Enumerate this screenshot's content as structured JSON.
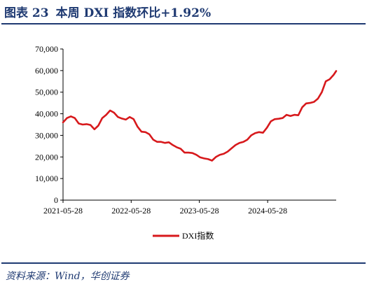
{
  "header": {
    "figure_label": "图表 23",
    "title": "本周 DXI 指数环比+1.92%"
  },
  "footer": {
    "source": "资料来源：Wind，华创证券"
  },
  "chart_data": {
    "type": "line",
    "title": "本周 DXI 指数环比+1.92%",
    "xlabel": "",
    "ylabel": "",
    "ylim": [
      0,
      70000
    ],
    "y_ticks": [
      0,
      10000,
      20000,
      30000,
      40000,
      50000,
      60000,
      70000
    ],
    "y_tick_labels": [
      "0",
      "10,000",
      "20,000",
      "30,000",
      "40,000",
      "50,000",
      "60,000",
      "70,000"
    ],
    "x_range": [
      "2021-05-28",
      "2025-05-30"
    ],
    "x_ticks": [
      "2021-05-28",
      "2022-05-28",
      "2023-05-28",
      "2024-05-28"
    ],
    "grid": false,
    "legend_position": "bottom-center",
    "line_color": "#d7191c",
    "series": [
      {
        "name": "DXI指数",
        "x": [
          "2021-05-28",
          "2021-06-18",
          "2021-07-09",
          "2021-07-30",
          "2021-08-20",
          "2021-09-10",
          "2021-10-01",
          "2021-10-22",
          "2021-11-12",
          "2021-12-03",
          "2021-12-24",
          "2022-01-14",
          "2022-02-04",
          "2022-02-25",
          "2022-03-18",
          "2022-04-08",
          "2022-04-29",
          "2022-05-20",
          "2022-06-10",
          "2022-07-01",
          "2022-07-22",
          "2022-08-12",
          "2022-09-02",
          "2022-09-23",
          "2022-10-14",
          "2022-11-04",
          "2022-11-25",
          "2022-12-16",
          "2023-01-06",
          "2023-01-27",
          "2023-02-17",
          "2023-03-10",
          "2023-03-31",
          "2023-04-21",
          "2023-05-12",
          "2023-06-02",
          "2023-06-23",
          "2023-07-14",
          "2023-08-04",
          "2023-08-25",
          "2023-09-15",
          "2023-10-06",
          "2023-10-27",
          "2023-11-17",
          "2023-12-08",
          "2023-12-29",
          "2024-01-19",
          "2024-02-09",
          "2024-03-01",
          "2024-03-22",
          "2024-04-12",
          "2024-05-03",
          "2024-05-24",
          "2024-06-14",
          "2024-07-05",
          "2024-07-26",
          "2024-08-16",
          "2024-09-06",
          "2024-09-27",
          "2024-10-18",
          "2024-11-08",
          "2024-11-29",
          "2024-12-20",
          "2025-01-10",
          "2025-01-31",
          "2025-02-21",
          "2025-03-14",
          "2025-04-04",
          "2025-04-25",
          "2025-05-16",
          "2025-05-30"
        ],
        "values": [
          36000,
          38000,
          38800,
          38000,
          35500,
          35000,
          35200,
          34800,
          32800,
          34500,
          38000,
          39500,
          41500,
          40500,
          38500,
          37800,
          37300,
          38500,
          37500,
          34000,
          31700,
          31500,
          30500,
          28000,
          27000,
          27000,
          26500,
          26800,
          25500,
          24500,
          23800,
          22000,
          22000,
          21800,
          21000,
          19800,
          19300,
          19000,
          18300,
          20000,
          21000,
          21500,
          22500,
          24000,
          25500,
          26500,
          27000,
          28000,
          30000,
          31000,
          31500,
          31200,
          33500,
          36500,
          37500,
          37700,
          38000,
          39500,
          39000,
          39500,
          39300,
          43000,
          44800,
          45000,
          45500,
          47000,
          50000,
          55000,
          56000,
          58000,
          59800
        ]
      }
    ]
  }
}
